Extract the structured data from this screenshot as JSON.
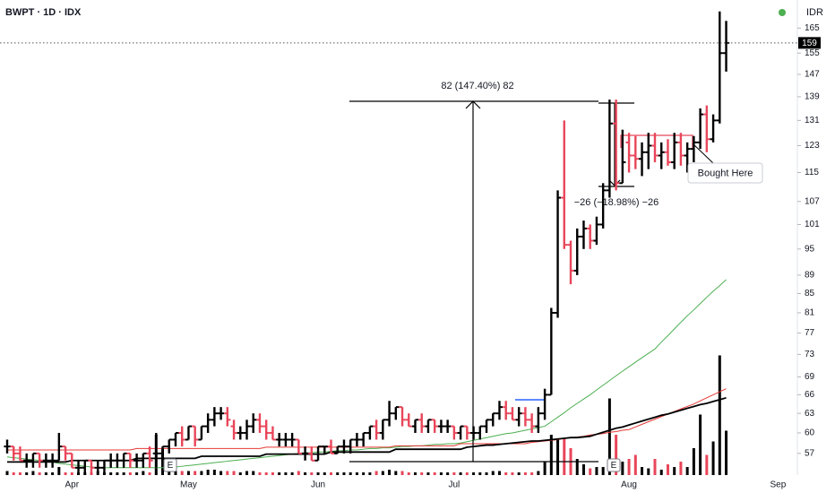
{
  "chart_data": {
    "type": "ohlc",
    "title": "BWPT · 1D · IDX",
    "currency": "IDR",
    "log_scale": true,
    "grid": false,
    "up_color": "#000000",
    "down_color": "#e8465a",
    "categories": [
      null,
      null,
      null,
      null,
      null,
      null,
      null,
      null,
      null,
      null,
      "Apr",
      null,
      null,
      null,
      null,
      null,
      null,
      null,
      null,
      null,
      null,
      null,
      null,
      null,
      null,
      null,
      null,
      null,
      "May",
      null,
      null,
      null,
      null,
      null,
      null,
      null,
      null,
      null,
      null,
      null,
      null,
      null,
      null,
      null,
      null,
      null,
      null,
      null,
      "Jun",
      null,
      null,
      null,
      null,
      null,
      null,
      null,
      null,
      null,
      null,
      null,
      null,
      null,
      null,
      null,
      null,
      null,
      null,
      null,
      null,
      "Jul",
      null,
      null,
      null,
      null,
      null,
      null,
      null,
      null,
      null,
      null,
      null,
      null,
      null,
      null,
      null,
      null,
      null,
      null,
      null,
      null,
      null,
      null,
      null,
      null,
      null,
      null,
      "Aug",
      null,
      null,
      null,
      null,
      null,
      null,
      null,
      null,
      null,
      null,
      null,
      null,
      null,
      null,
      null,
      null,
      null,
      null,
      null,
      null,
      null,
      null,
      "Sep"
    ],
    "open": [
      58,
      58,
      57,
      56,
      56,
      57,
      56,
      56,
      56,
      58,
      57,
      55,
      55,
      56,
      55,
      55,
      56,
      56,
      56,
      57,
      56,
      56,
      57,
      57,
      57,
      58,
      59,
      60,
      59,
      61,
      59,
      61,
      62,
      63,
      63,
      61,
      60,
      60,
      61,
      62,
      61,
      60,
      59,
      59,
      59,
      59,
      57,
      57,
      56,
      58,
      58,
      57,
      58,
      58,
      59,
      59,
      60,
      61,
      60,
      62,
      63,
      64,
      62,
      61,
      62,
      61,
      62,
      61,
      61,
      61,
      60,
      61,
      60,
      60,
      61,
      62,
      63,
      64,
      63,
      62,
      63,
      62,
      61,
      63,
      66,
      81,
      108,
      96,
      90,
      98,
      100,
      97,
      101,
      110,
      130,
      112,
      124,
      120,
      119,
      121,
      123,
      120,
      121,
      118,
      124,
      120,
      122,
      124,
      133,
      125,
      131,
      155,
      null,
      null,
      null,
      null,
      null,
      null,
      null,
      null
    ],
    "high": [
      59,
      58,
      58,
      57,
      57,
      57,
      57,
      57,
      60,
      58,
      57,
      56,
      56,
      56,
      56,
      56,
      57,
      57,
      57,
      57,
      57,
      57,
      58,
      60,
      58,
      59,
      60,
      61,
      61,
      61,
      61,
      63,
      64,
      64,
      64,
      62,
      61,
      62,
      63,
      63,
      62,
      61,
      60,
      60,
      60,
      59,
      58,
      58,
      58,
      58,
      59,
      58,
      59,
      59,
      60,
      60,
      61,
      62,
      62,
      65,
      64,
      64,
      63,
      62,
      63,
      62,
      62,
      62,
      62,
      61,
      61,
      61,
      61,
      61,
      62,
      63,
      65,
      65,
      64,
      64,
      64,
      63,
      64,
      67,
      82,
      110,
      131,
      97,
      100,
      102,
      101,
      103,
      112,
      138,
      138,
      128,
      127,
      126,
      124,
      127,
      127,
      124,
      125,
      127,
      127,
      124,
      126,
      135,
      136,
      133,
      172,
      168,
      null,
      null,
      null,
      null,
      null,
      null,
      null,
      null
    ],
    "low": [
      57,
      56,
      56,
      55,
      55,
      55,
      55,
      55,
      56,
      56,
      55,
      54,
      54,
      54,
      54,
      54,
      55,
      55,
      55,
      55,
      55,
      55,
      55,
      55,
      56,
      57,
      58,
      58,
      59,
      58,
      59,
      60,
      61,
      62,
      61,
      59,
      59,
      59,
      60,
      60,
      59,
      59,
      58,
      58,
      58,
      57,
      56,
      56,
      56,
      57,
      57,
      57,
      57,
      57,
      58,
      58,
      59,
      59,
      59,
      61,
      62,
      61,
      61,
      60,
      60,
      60,
      60,
      60,
      60,
      59,
      59,
      59,
      59,
      59,
      60,
      61,
      62,
      62,
      62,
      61,
      61,
      60,
      60,
      62,
      66,
      80,
      95,
      87,
      89,
      95,
      95,
      96,
      100,
      108,
      110,
      112,
      115,
      116,
      114,
      116,
      118,
      116,
      117,
      116,
      117,
      115,
      118,
      122,
      121,
      124,
      130,
      148,
      null,
      null,
      null,
      null,
      null,
      null,
      null,
      null
    ],
    "close": [
      58,
      57,
      56,
      56,
      57,
      56,
      56,
      56,
      58,
      57,
      55,
      55,
      56,
      55,
      55,
      56,
      56,
      56,
      57,
      56,
      56,
      57,
      56,
      57,
      58,
      59,
      60,
      59,
      61,
      59,
      61,
      62,
      63,
      63,
      62,
      60,
      60,
      61,
      62,
      61,
      60,
      59,
      59,
      59,
      59,
      57,
      57,
      56,
      58,
      58,
      57,
      58,
      58,
      59,
      59,
      60,
      61,
      60,
      62,
      63,
      64,
      62,
      61,
      62,
      61,
      62,
      61,
      61,
      61,
      60,
      61,
      60,
      60,
      61,
      62,
      63,
      64,
      63,
      62,
      63,
      62,
      61,
      63,
      66,
      81,
      108,
      96,
      90,
      98,
      100,
      97,
      101,
      110,
      130,
      112,
      118,
      120,
      119,
      121,
      123,
      120,
      121,
      118,
      124,
      120,
      122,
      124,
      133,
      125,
      131,
      155,
      159,
      null,
      null,
      null,
      null,
      null,
      null,
      null,
      null
    ],
    "volume": [
      3,
      2,
      2,
      2,
      3,
      2,
      2,
      2,
      6,
      2,
      2,
      2,
      2,
      2,
      3,
      2,
      2,
      2,
      2,
      2,
      2,
      3,
      2,
      30,
      20,
      4,
      3,
      3,
      3,
      3,
      3,
      4,
      4,
      3,
      3,
      3,
      2,
      3,
      3,
      2,
      2,
      2,
      2,
      2,
      2,
      3,
      2,
      2,
      2,
      2,
      2,
      2,
      2,
      2,
      2,
      2,
      2,
      3,
      3,
      4,
      3,
      3,
      2,
      2,
      2,
      2,
      2,
      2,
      2,
      2,
      2,
      2,
      2,
      2,
      2,
      3,
      3,
      2,
      2,
      2,
      2,
      2,
      3,
      10,
      30,
      27,
      27,
      20,
      12,
      8,
      5,
      6,
      6,
      57,
      30,
      10,
      12,
      15,
      6,
      5,
      12,
      4,
      8,
      6,
      10,
      6,
      20,
      45,
      15,
      25,
      89,
      33,
      null,
      null,
      null,
      null,
      null,
      null,
      null,
      null
    ],
    "vlim": [
      0,
      100
    ],
    "ma": [
      {
        "color": "#4caf50",
        "values": [
          56.5,
          56.4,
          56.3,
          56.2,
          56.1,
          56.0,
          55.9,
          55.8,
          55.6,
          55.5,
          55.4,
          55.3,
          55.2,
          55.1,
          55.0,
          55.0,
          55.0,
          55.0,
          55.0,
          55.0,
          55.0,
          55.0,
          55.0,
          55.0,
          55.0,
          55.0,
          55.1,
          55.2,
          55.3,
          55.4,
          55.5,
          55.6,
          55.7,
          55.8,
          55.9,
          56.0,
          56.1,
          56.2,
          56.3,
          56.4,
          56.5,
          56.6,
          56.7,
          56.8,
          56.9,
          57.0,
          57.1,
          57.1,
          57.2,
          57.2,
          57.3,
          57.4,
          57.4,
          57.5,
          57.5,
          57.6,
          57.7,
          57.7,
          57.8,
          57.8,
          57.9,
          58.0,
          58.0,
          58.1,
          58.1,
          58.2,
          58.3,
          58.3,
          58.4,
          58.4,
          58.5,
          58.7,
          58.9,
          59.1,
          59.3,
          59.5,
          59.7,
          59.9,
          60.0,
          60.2,
          60.4,
          60.6,
          60.8,
          61.0,
          61.7,
          62.4,
          63.1,
          63.9,
          64.6,
          65.3,
          66.0,
          66.8,
          67.6,
          68.4,
          69.2,
          70.0,
          70.8,
          71.6,
          72.4,
          73.2,
          74.0,
          75.3,
          76.5,
          77.8,
          79.1,
          80.4,
          81.6,
          82.9,
          84.2,
          85.5,
          86.7,
          88.0,
          null,
          null,
          null,
          null,
          null,
          null,
          null,
          null
        ]
      },
      {
        "color": "#e53935",
        "values": [
          57.5,
          57.5,
          57.5,
          57.5,
          57.5,
          57.5,
          57.5,
          57.5,
          57.5,
          57.5,
          57.5,
          57.5,
          57.5,
          57.5,
          57.5,
          57.5,
          57.5,
          57.5,
          57.5,
          57.5,
          57.7,
          57.7,
          57.7,
          57.7,
          57.7,
          57.7,
          57.7,
          57.7,
          57.7,
          57.7,
          57.7,
          57.7,
          57.7,
          57.7,
          57.7,
          57.7,
          57.7,
          57.7,
          57.7,
          57.7,
          57.9,
          57.9,
          57.9,
          57.9,
          57.9,
          57.9,
          57.9,
          57.9,
          57.9,
          57.9,
          57.9,
          57.9,
          57.9,
          57.9,
          57.9,
          57.9,
          57.9,
          57.9,
          57.9,
          57.9,
          58.1,
          58.1,
          58.1,
          58.1,
          58.1,
          58.1,
          58.1,
          58.1,
          58.1,
          58.1,
          58.4,
          58.4,
          58.4,
          58.4,
          58.4,
          58.4,
          58.4,
          58.4,
          58.4,
          58.4,
          58.4,
          58.6,
          58.7,
          58.8,
          58.9,
          59.0,
          59.2,
          59.3,
          59.4,
          59.5,
          59.7,
          59.8,
          59.9,
          60.1,
          60.2,
          60.4,
          60.5,
          60.9,
          61.3,
          61.7,
          62.1,
          62.5,
          62.9,
          63.3,
          63.7,
          64.1,
          64.5,
          65.0,
          65.5,
          66.0,
          66.5,
          67.0,
          null,
          null,
          null,
          null,
          null,
          null,
          null,
          null
        ]
      },
      {
        "color": "#000000",
        "values": [
          55.8,
          55.8,
          55.8,
          55.8,
          55.8,
          55.8,
          55.8,
          55.8,
          55.8,
          55.8,
          56.0,
          56.0,
          56.0,
          56.0,
          56.0,
          56.0,
          56.0,
          56.0,
          56.0,
          56.0,
          56.3,
          56.3,
          56.3,
          56.3,
          56.3,
          56.3,
          56.3,
          56.3,
          56.3,
          56.3,
          56.6,
          56.6,
          56.6,
          56.6,
          56.6,
          56.6,
          56.6,
          56.6,
          56.6,
          56.6,
          56.9,
          56.9,
          56.9,
          56.9,
          56.9,
          56.9,
          56.9,
          56.9,
          56.9,
          56.9,
          57.2,
          57.2,
          57.2,
          57.2,
          57.2,
          57.2,
          57.2,
          57.2,
          57.2,
          57.2,
          57.6,
          57.6,
          57.6,
          57.6,
          57.6,
          57.6,
          57.6,
          57.6,
          57.6,
          57.6,
          57.6,
          57.9,
          58.0,
          58.1,
          58.2,
          58.2,
          58.3,
          58.4,
          58.5,
          58.6,
          58.7,
          58.8,
          58.8,
          58.9,
          59.0,
          59.1,
          59.2,
          59.3,
          59.3,
          59.4,
          59.5,
          59.8,
          60.1,
          60.4,
          60.7,
          60.9,
          61.2,
          61.5,
          61.8,
          62.1,
          62.4,
          62.7,
          62.9,
          63.2,
          63.5,
          63.8,
          64.1,
          64.4,
          64.6,
          64.9,
          65.2,
          65.5,
          null,
          null,
          null,
          null,
          null,
          null,
          null,
          null
        ]
      }
    ],
    "ylim": [
      54,
      177
    ],
    "yticks": [
      57,
      60,
      63,
      66,
      69,
      73,
      77,
      81,
      85,
      89,
      95,
      101,
      107,
      115,
      123,
      131,
      139,
      147,
      155,
      165
    ],
    "last_price": 159,
    "annotations": [
      "82 (147.40%) 82",
      "−26 (−18.98%) −26",
      "Bought Here"
    ],
    "markers": [
      "E",
      "E"
    ]
  }
}
